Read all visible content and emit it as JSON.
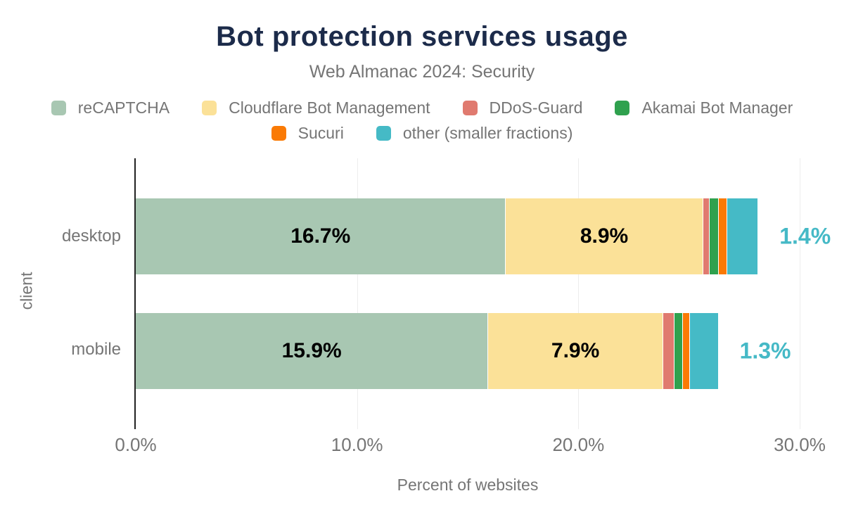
{
  "title": "Bot protection services usage",
  "subtitle": "Web Almanac 2024: Security",
  "colors": {
    "title_text": "#1c2b4a",
    "muted_text": "#757575",
    "value_label_text": "#000000",
    "outside_label_text": "#45b9c6",
    "axis_line": "#222222",
    "gridline": "#ededed"
  },
  "legend_rows": [
    [
      0,
      1,
      2,
      3
    ],
    [
      4,
      5
    ]
  ],
  "chart_data": {
    "type": "bar",
    "orientation": "horizontal",
    "stacked": true,
    "title": "Bot protection services usage",
    "subtitle": "Web Almanac 2024: Security",
    "categories": [
      "desktop",
      "mobile"
    ],
    "series": [
      {
        "name": "reCAPTCHA",
        "color": "#a8c7b2",
        "values": [
          16.7,
          15.9
        ],
        "show_label": true
      },
      {
        "name": "Cloudflare Bot Management",
        "color": "#fbe198",
        "values": [
          8.9,
          7.9
        ],
        "show_label": true
      },
      {
        "name": "DDoS-Guard",
        "color": "#e07a6f",
        "values": [
          0.3,
          0.5
        ],
        "show_label": false
      },
      {
        "name": "Akamai Bot Manager",
        "color": "#2fa14e",
        "values": [
          0.4,
          0.4
        ],
        "show_label": false
      },
      {
        "name": "Sucuri",
        "color": "#fa7a05",
        "values": [
          0.4,
          0.3
        ],
        "show_label": false
      },
      {
        "name": "other (smaller fractions)",
        "color": "#45bac6",
        "values": [
          1.4,
          1.3
        ],
        "show_label": false,
        "outside_label": true
      }
    ],
    "outside_labels": [
      "1.4%",
      "1.3%"
    ],
    "inside_labels": [
      [
        "16.7%",
        "8.9%"
      ],
      [
        "15.9%",
        "7.9%"
      ]
    ],
    "xlabel": "Percent of websites",
    "ylabel": "client",
    "xlim": [
      0,
      30
    ],
    "xticks": [
      {
        "value": 0,
        "label": "0.0%"
      },
      {
        "value": 10,
        "label": "10.0%"
      },
      {
        "value": 20,
        "label": "20.0%"
      },
      {
        "value": 30,
        "label": "30.0%"
      }
    ],
    "grid": true,
    "legend_position": "top"
  }
}
